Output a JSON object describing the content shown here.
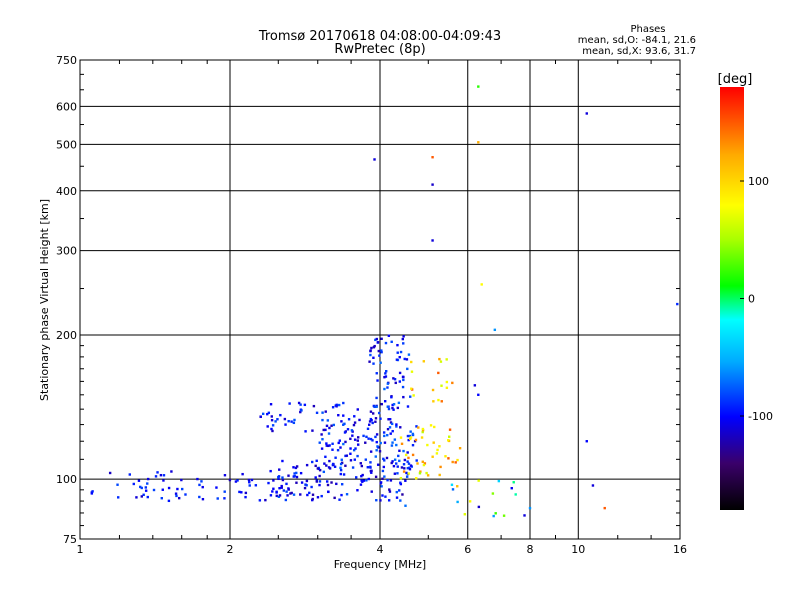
{
  "chart_data": {
    "type": "scatter",
    "title_line1": "Tromsø 20170618 04:08:00-04:09:43",
    "title_line2": "RwPretec (8p)",
    "xlabel": "Frequency [MHz]",
    "ylabel": "Stationary phase Virtual Height [km]",
    "x_scale": "log",
    "y_scale": "log",
    "xlim": [
      1,
      16
    ],
    "ylim": [
      75,
      750
    ],
    "x_ticks": [
      1,
      2,
      4,
      6,
      8,
      10,
      16
    ],
    "y_ticks": [
      75,
      100,
      200,
      300,
      400,
      500,
      600,
      750
    ],
    "grid": true,
    "phase_info": {
      "title": "Phases",
      "line_o": "mean, sd,O: -84.1, 21.6",
      "line_x": "mean, sd,X:  93.6, 31.7"
    },
    "colorbar": {
      "label": "[deg]",
      "range": [
        -180,
        180
      ],
      "ticks": [
        100,
        0,
        -100
      ],
      "colors": [
        "#000000",
        "#3a006a",
        "#0000ff",
        "#00aaff",
        "#00ffff",
        "#00ff00",
        "#aaff00",
        "#ffff00",
        "#ffaa00",
        "#ff0000"
      ]
    },
    "point_groups": [
      {
        "name": "low-layer-o",
        "x_range": [
          1.05,
          3.0
        ],
        "y_range": [
          90,
          104
        ],
        "phase": [
          -120,
          -80
        ],
        "count": 90
      },
      {
        "name": "low-layer-o2",
        "x_range": [
          2.5,
          4.6
        ],
        "y_range": [
          90,
          110
        ],
        "phase": [
          -125,
          -75
        ],
        "count": 120
      },
      {
        "name": "mid-trace",
        "x_range": [
          3.0,
          4.8
        ],
        "y_range": [
          105,
          130
        ],
        "phase": [
          -120,
          -70
        ],
        "count": 110
      },
      {
        "name": "upper-trace",
        "x_range": [
          2.3,
          4.4
        ],
        "y_range": [
          125,
          145
        ],
        "phase": [
          -120,
          -75
        ],
        "count": 80
      },
      {
        "name": "spread-f",
        "x_range": [
          3.8,
          4.6
        ],
        "y_range": [
          140,
          200
        ],
        "phase": [
          -120,
          -70
        ],
        "count": 70
      },
      {
        "name": "x-mode",
        "x_range": [
          4.4,
          5.8
        ],
        "y_range": [
          100,
          130
        ],
        "phase": [
          50,
          150
        ],
        "count": 45
      },
      {
        "name": "x-mode-upper",
        "x_range": [
          4.5,
          5.6
        ],
        "y_range": [
          145,
          180
        ],
        "phase": [
          60,
          160
        ],
        "count": 18
      },
      {
        "name": "scattered-high",
        "x_range": [
          5.5,
          7.5
        ],
        "y_range": [
          82,
          100
        ],
        "phase": [
          -120,
          120
        ],
        "count": 16
      }
    ],
    "points": [
      {
        "x": 3.9,
        "y": 465,
        "phase": -110
      },
      {
        "x": 5.1,
        "y": 470,
        "phase": 150
      },
      {
        "x": 5.1,
        "y": 412,
        "phase": -115
      },
      {
        "x": 5.1,
        "y": 315,
        "phase": -110
      },
      {
        "x": 6.3,
        "y": 660,
        "phase": 20
      },
      {
        "x": 6.3,
        "y": 505,
        "phase": 120
      },
      {
        "x": 6.4,
        "y": 255,
        "phase": 80
      },
      {
        "x": 6.8,
        "y": 205,
        "phase": -60
      },
      {
        "x": 10.4,
        "y": 580,
        "phase": -110
      },
      {
        "x": 10.4,
        "y": 120,
        "phase": -100
      },
      {
        "x": 10.7,
        "y": 97,
        "phase": -110
      },
      {
        "x": 11.3,
        "y": 87,
        "phase": 150
      },
      {
        "x": 15.8,
        "y": 232,
        "phase": -90
      },
      {
        "x": 8.0,
        "y": 87,
        "phase": -60
      },
      {
        "x": 7.8,
        "y": 84,
        "phase": -110
      },
      {
        "x": 6.2,
        "y": 157,
        "phase": -110
      },
      {
        "x": 6.3,
        "y": 150,
        "phase": -100
      },
      {
        "x": 4.5,
        "y": 88,
        "phase": -70
      }
    ]
  }
}
